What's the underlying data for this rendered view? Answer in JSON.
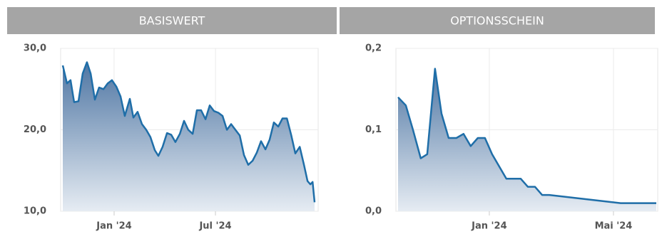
{
  "chart_data": [
    {
      "type": "line",
      "title": "BASISWERT",
      "color": "#1f6ea8",
      "x": [
        -3.04,
        -2.79,
        -2.58,
        -2.37,
        -2.11,
        -1.86,
        -1.61,
        -1.39,
        -1.14,
        -0.89,
        -0.63,
        -0.38,
        -0.13,
        0.13,
        0.38,
        0.63,
        0.93,
        1.14,
        1.39,
        1.65,
        1.9,
        2.15,
        2.41,
        2.62,
        2.87,
        3.13,
        3.38,
        3.63,
        3.89,
        4.14,
        4.39,
        4.65,
        4.9,
        5.15,
        5.41,
        5.66,
        5.92,
        6.17,
        6.42,
        6.68,
        6.93,
        7.18,
        7.44,
        7.69,
        7.94,
        8.2,
        8.45,
        8.7,
        8.96,
        9.21,
        9.46,
        9.72,
        9.97,
        10.23,
        10.48,
        10.73,
        10.99,
        11.24,
        11.45,
        11.62,
        11.75,
        11.87
      ],
      "values": [
        27.9,
        25.7,
        26.1,
        23.4,
        23.5,
        26.9,
        28.3,
        26.9,
        23.7,
        25.2,
        25.0,
        25.7,
        26.1,
        25.3,
        24.1,
        21.7,
        23.8,
        21.5,
        22.2,
        20.7,
        20.0,
        19.1,
        17.5,
        16.8,
        17.9,
        19.6,
        19.4,
        18.5,
        19.5,
        21.1,
        20.0,
        19.5,
        22.4,
        22.4,
        21.3,
        23.0,
        22.3,
        22.1,
        21.7,
        20.0,
        20.7,
        20.0,
        19.3,
        16.9,
        15.7,
        16.2,
        17.2,
        18.6,
        17.6,
        18.8,
        20.9,
        20.4,
        21.4,
        21.4,
        19.4,
        17.1,
        17.9,
        15.7,
        13.7,
        13.3,
        13.6,
        11.1
      ],
      "xlim": [
        -3.04,
        11.87
      ],
      "xticks": [
        {
          "value": 0,
          "label": "Jan '24"
        },
        {
          "value": 6,
          "label": "Jul '24"
        }
      ],
      "ylim": [
        10,
        30
      ],
      "yticks": [
        {
          "value": 10,
          "label": "10,0"
        },
        {
          "value": 20,
          "label": "20,0"
        },
        {
          "value": 30,
          "label": "30,0"
        }
      ],
      "grid": true
    },
    {
      "type": "line",
      "title": "OPTIONSSCHEIN",
      "color": "#1f6ea8",
      "x": [
        -2.94,
        -2.69,
        -2.46,
        -2.21,
        -2.0,
        -1.75,
        -1.54,
        -1.31,
        -1.06,
        -0.83,
        -0.6,
        -0.37,
        -0.14,
        0.09,
        0.55,
        1.01,
        1.24,
        1.47,
        1.7,
        1.93,
        4.23,
        5.38
      ],
      "values": [
        0.14,
        0.13,
        0.1,
        0.065,
        0.07,
        0.175,
        0.12,
        0.09,
        0.09,
        0.095,
        0.08,
        0.09,
        0.09,
        0.07,
        0.04,
        0.04,
        0.03,
        0.03,
        0.02,
        0.02,
        0.01,
        0.01
      ],
      "xlim": [
        -2.94,
        5.38
      ],
      "xticks": [
        {
          "value": 0,
          "label": "Jan '24"
        },
        {
          "value": 4,
          "label": "Mai '24"
        }
      ],
      "ylim": [
        0,
        0.2
      ],
      "yticks": [
        {
          "value": 0,
          "label": "0,0"
        },
        {
          "value": 0.1,
          "label": "0,1"
        },
        {
          "value": 0.2,
          "label": "0,2"
        }
      ],
      "grid": true
    }
  ]
}
